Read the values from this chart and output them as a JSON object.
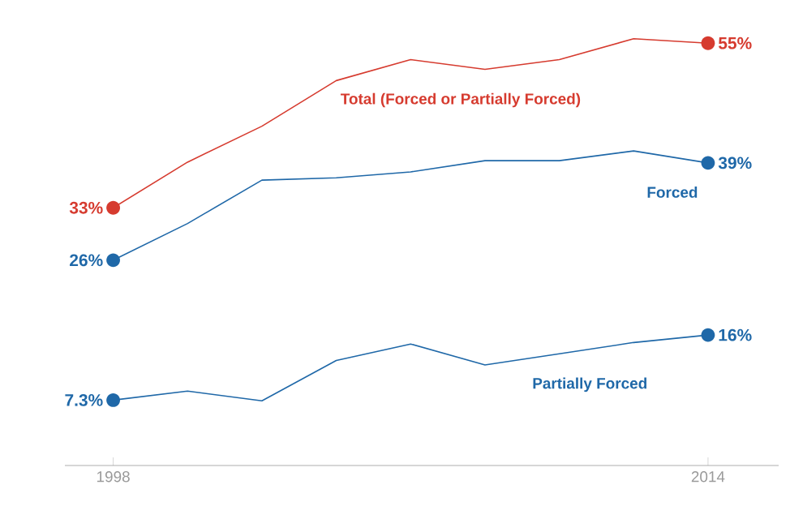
{
  "chart_data": {
    "type": "line",
    "x": [
      1998,
      2000,
      2002,
      2004,
      2006,
      2008,
      2010,
      2012,
      2014
    ],
    "xlim": [
      1996.7,
      2015.9
    ],
    "xticks": [
      1998,
      2014
    ],
    "tick_labels": "x",
    "series": [
      {
        "name": "Total (Forced or Partially Forced)",
        "color": "#d63b2f",
        "values": [
          33,
          39.1,
          43.9,
          50,
          52.8,
          51.5,
          52.8,
          55.6,
          55
        ],
        "value_labels": [
          "33%",
          null,
          null,
          null,
          null,
          null,
          null,
          null,
          "55%"
        ]
      },
      {
        "name": "Forced",
        "color": "#1f68a8",
        "values": [
          26,
          30.9,
          36.7,
          37,
          37.8,
          39.3,
          39.3,
          40.6,
          39
        ],
        "value_labels": [
          "26%",
          null,
          null,
          null,
          null,
          null,
          null,
          null,
          "39%"
        ]
      },
      {
        "name": "Partially Forced",
        "color": "#1f68a8",
        "values": [
          7.3,
          8.5,
          7.2,
          12.6,
          14.8,
          12,
          13.5,
          15,
          16
        ],
        "value_labels": [
          "7.3%",
          null,
          null,
          null,
          null,
          null,
          null,
          null,
          "16%"
        ]
      }
    ]
  }
}
